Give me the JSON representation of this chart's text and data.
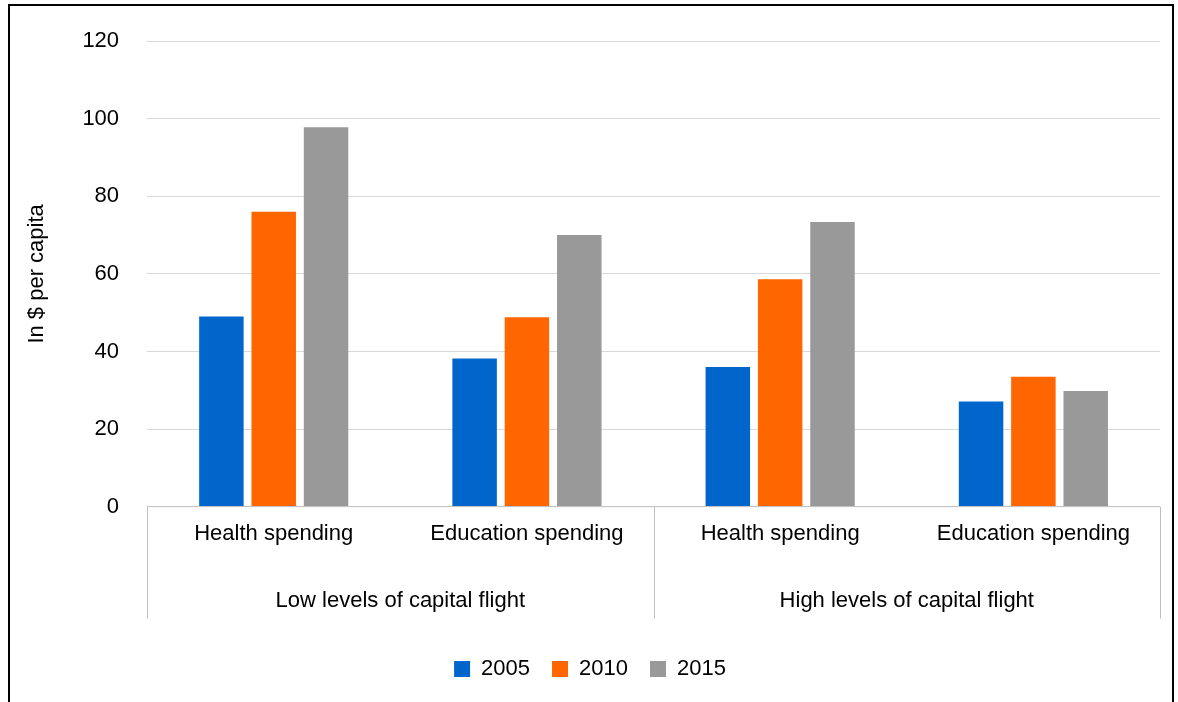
{
  "chart_data": {
    "type": "bar",
    "ylabel": "In $ per capita",
    "categories": [
      "Health spending",
      "Education spending",
      "Health spending",
      "Education spending"
    ],
    "series": [
      {
        "name": "2005",
        "color": "#0066cc",
        "values": [
          49,
          38.2,
          36,
          27.1
        ]
      },
      {
        "name": "2010",
        "color": "#ff6600",
        "values": [
          76,
          48.8,
          58.6,
          33.5
        ]
      },
      {
        "name": "2015",
        "color": "#999999",
        "values": [
          97.8,
          70,
          73.4,
          29.8
        ]
      }
    ],
    "annotations": [
      "Low levels of capital flight",
      "High levels of capital flight"
    ],
    "ylim": [
      0,
      120
    ],
    "yticks": [
      0,
      20,
      40,
      60,
      80,
      100,
      120
    ],
    "grid": "y",
    "legend": "bottom"
  }
}
